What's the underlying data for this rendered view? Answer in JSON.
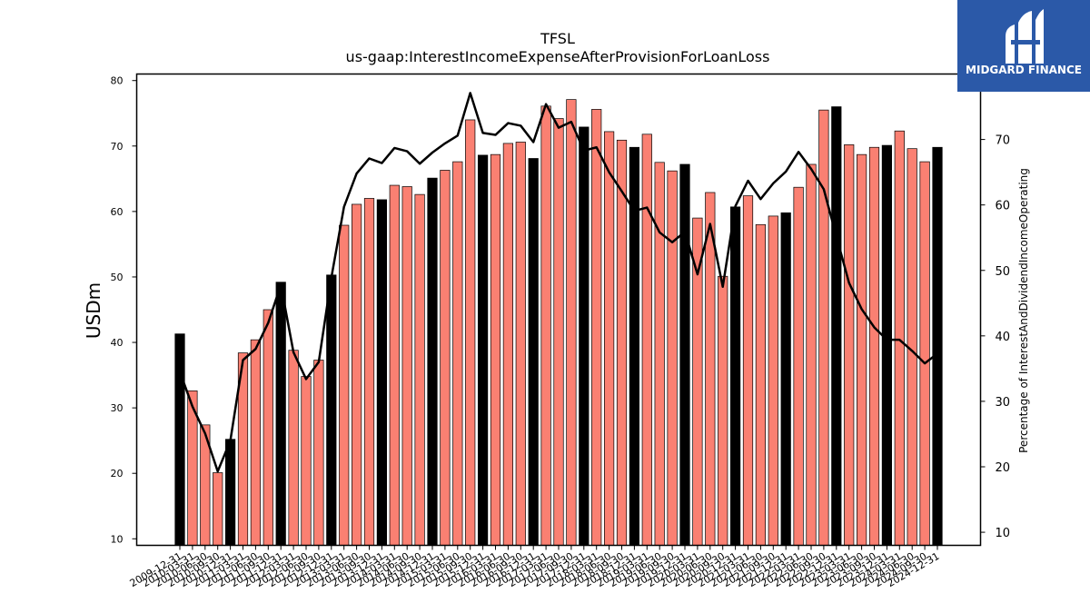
{
  "brand": {
    "name": "MIDGARD FINANCE",
    "color": "#2b59a8"
  },
  "chart_data": {
    "type": "bar",
    "title": "TFSL",
    "subtitle": "us-gaap:InterestIncomeExpenseAfterProvisionForLoanLoss",
    "ylabel": "USDm",
    "y2label": "Percentage of InterestAndDividendIncomeOperating",
    "ylim": [
      9,
      81
    ],
    "y2lim": [
      8,
      80
    ],
    "yticks": [
      10,
      20,
      30,
      40,
      50,
      60,
      70,
      80
    ],
    "y2ticks": [
      10,
      20,
      30,
      40,
      50,
      60,
      70
    ],
    "colors": {
      "quarter": "#fa8072",
      "fiscal_year_end": "#000000",
      "line": "#000000"
    },
    "categories": [
      "2009-12-31",
      "2010-03-31",
      "2010-06-30",
      "2010-09-30",
      "2010-12-31",
      "2011-03-31",
      "2011-06-30",
      "2011-09-30",
      "2011-12-31",
      "2012-03-31",
      "2012-06-30",
      "2012-09-30",
      "2012-12-31",
      "2013-03-31",
      "2013-06-30",
      "2013-09-30",
      "2013-12-31",
      "2014-03-31",
      "2014-06-30",
      "2014-09-30",
      "2014-12-31",
      "2015-03-31",
      "2015-06-30",
      "2015-09-30",
      "2015-12-31",
      "2016-03-31",
      "2016-06-30",
      "2016-09-30",
      "2016-12-31",
      "2017-03-31",
      "2017-06-30",
      "2017-09-30",
      "2017-12-31",
      "2018-03-31",
      "2018-06-30",
      "2018-09-30",
      "2018-12-31",
      "2019-03-31",
      "2019-06-30",
      "2019-09-30",
      "2019-12-31",
      "2020-03-31",
      "2020-06-30",
      "2020-09-30",
      "2020-12-31",
      "2021-03-31",
      "2021-06-30",
      "2021-09-30",
      "2021-12-31",
      "2022-03-31",
      "2022-06-30",
      "2022-09-30",
      "2022-12-31",
      "2023-03-31",
      "2023-06-30",
      "2023-09-30",
      "2023-12-31",
      "2024-03-31",
      "2024-06-30",
      "2024-09-30",
      "2024-12-31"
    ],
    "xtick_labels": [
      "2009-12-31",
      "2010-03-31",
      "2010-06-30",
      "2010-09-30",
      "2010-12-31",
      "2011-03-31",
      "2011-06-30",
      "2011-09-30",
      "2011-12-31",
      "2012-03-31",
      "2012-06-30",
      "2012-09-30",
      "2012-12-31",
      "2013-03-31",
      "2013-06-30",
      "2013-09-30",
      "2013-12-31",
      "2014-03-31",
      "2014-06-30",
      "2014-09-30",
      "2014-12-31",
      "2015-03-31",
      "2015-06-30",
      "2015-09-30",
      "2015-12-31",
      "2016-03-31",
      "2016-06-30",
      "2016-09-30",
      "2016-12-31",
      "2017-03-31",
      "2017-06-30",
      "2017-09-30",
      "2017-12-31",
      "2018-03-31",
      "2018-06-30",
      "2018-09-30",
      "2018-12-31",
      "2019-03-31",
      "2019-06-30",
      "2019-09-30",
      "2019-12-31",
      "2020-03-31",
      "2020-06-30",
      "2020-09-30",
      "2020-12-31",
      "2021-03-31",
      "2021-06-30",
      "2021-09-30",
      "2021-12-31",
      "2022-03-31",
      "2022-06-30",
      "2022-09-30",
      "2022-12-31",
      "2023-03-31",
      "2023-06-30",
      "2023-09-30",
      "2023-12-31",
      "2024-03-31",
      "2024-06-30",
      "2024-09-30",
      "2024-12-31"
    ],
    "fiscal_year_end": [
      true,
      false,
      false,
      false,
      true,
      false,
      false,
      false,
      true,
      false,
      false,
      false,
      true,
      false,
      false,
      false,
      true,
      false,
      false,
      false,
      true,
      false,
      false,
      false,
      true,
      false,
      false,
      false,
      true,
      false,
      false,
      false,
      true,
      false,
      false,
      false,
      true,
      false,
      false,
      false,
      true,
      false,
      false,
      false,
      true,
      false,
      false,
      false,
      true,
      false,
      false,
      false,
      true,
      false,
      false,
      false,
      true,
      false,
      false,
      false,
      true
    ],
    "series": [
      {
        "type": "bar",
        "axis": "left",
        "values": [
          41.3,
          32.6,
          27.4,
          20.1,
          25.2,
          38.4,
          40.4,
          45.0,
          49.2,
          38.8,
          34.8,
          37.3,
          50.3,
          57.9,
          61.1,
          62.0,
          61.8,
          64.0,
          63.8,
          62.6,
          65.1,
          66.3,
          67.6,
          74.0,
          68.6,
          68.7,
          70.4,
          70.6,
          68.1,
          76.1,
          74.2,
          77.1,
          72.9,
          75.6,
          72.2,
          70.9,
          69.8,
          71.8,
          67.5,
          66.2,
          67.2,
          59.0,
          62.9,
          50.1,
          60.7,
          62.4,
          58.0,
          59.3,
          59.8,
          63.7,
          67.2,
          75.5,
          76.0,
          70.2,
          68.7,
          69.8,
          70.1,
          72.3,
          69.6,
          67.6,
          69.8
        ]
      },
      {
        "type": "line",
        "axis": "right",
        "values": [
          34.5,
          29.2,
          25.1,
          19.3,
          24.0,
          36.3,
          38.0,
          42.0,
          47.8,
          37.5,
          33.4,
          36.0,
          48.9,
          59.7,
          64.8,
          67.1,
          66.4,
          68.7,
          68.2,
          66.3,
          68.0,
          69.4,
          70.6,
          77.1,
          71.0,
          70.7,
          72.5,
          72.1,
          69.6,
          75.4,
          71.8,
          72.7,
          68.3,
          68.8,
          65.0,
          62.1,
          59.1,
          59.6,
          55.8,
          54.3,
          55.9,
          49.4,
          57.1,
          47.5,
          59.8,
          63.7,
          60.9,
          63.3,
          65.1,
          68.1,
          65.5,
          62.4,
          55.2,
          48.1,
          44.1,
          41.3,
          39.4,
          39.4,
          37.7,
          35.8,
          37.3
        ]
      }
    ]
  }
}
